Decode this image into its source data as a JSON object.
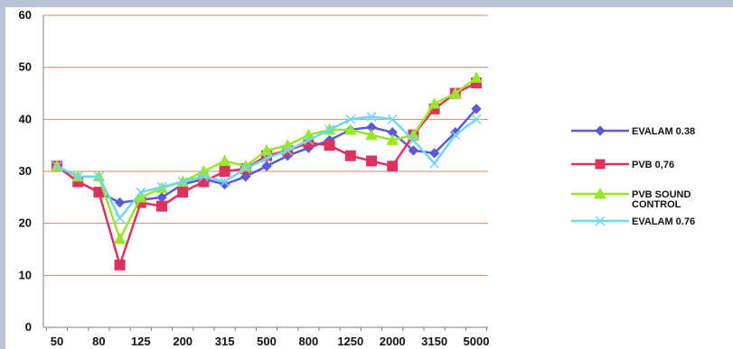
{
  "chart_data": {
    "type": "line",
    "x": [
      "50",
      "63",
      "80",
      "100",
      "125",
      "160",
      "200",
      "250",
      "315",
      "400",
      "500",
      "630",
      "800",
      "1000",
      "1250",
      "1600",
      "2000",
      "2500",
      "3150",
      "4000",
      "5000"
    ],
    "x_tick_labels": [
      "50",
      "80",
      "125",
      "200",
      "315",
      "500",
      "800",
      "1250",
      "2000",
      "3150",
      "5000"
    ],
    "ylim": [
      0,
      60
    ],
    "y_ticks": [
      0,
      10,
      20,
      30,
      40,
      50,
      60
    ],
    "grid": "horizontal",
    "legend_position": "right",
    "series": [
      {
        "name": "EVALAM 0.38",
        "color": "#5b5bd6",
        "marker": "diamond",
        "values": [
          31,
          28,
          26,
          24,
          24.5,
          25,
          27.5,
          28.5,
          27.5,
          29,
          31,
          33,
          34.5,
          36,
          38,
          38.5,
          37.5,
          34,
          33.5,
          37.5,
          42
        ]
      },
      {
        "name": "PVB 0,76",
        "color": "#e0325f",
        "marker": "square",
        "values": [
          31,
          28,
          26,
          12,
          24,
          23.3,
          26,
          28,
          30,
          30.5,
          33,
          34,
          35.5,
          35,
          33,
          32,
          31,
          37,
          42,
          45,
          47
        ]
      },
      {
        "name": "PVB SOUND CONTROL",
        "name_lines": [
          "PVB SOUND",
          "CONTROL"
        ],
        "color": "#9ae62a",
        "marker": "triangle",
        "values": [
          31,
          29,
          29,
          17,
          25,
          26.8,
          28,
          30,
          32,
          31,
          34,
          35,
          37,
          38,
          38,
          37,
          36,
          37,
          43,
          45,
          48
        ]
      },
      {
        "name": "EVALAM 0.76",
        "color": "#6fd8f0",
        "marker": "x",
        "values": [
          31,
          29,
          29,
          21,
          26,
          27,
          28,
          29,
          28,
          30.5,
          32.5,
          34,
          36,
          38,
          40,
          40.5,
          40,
          36,
          31.5,
          37,
          40
        ]
      }
    ]
  }
}
